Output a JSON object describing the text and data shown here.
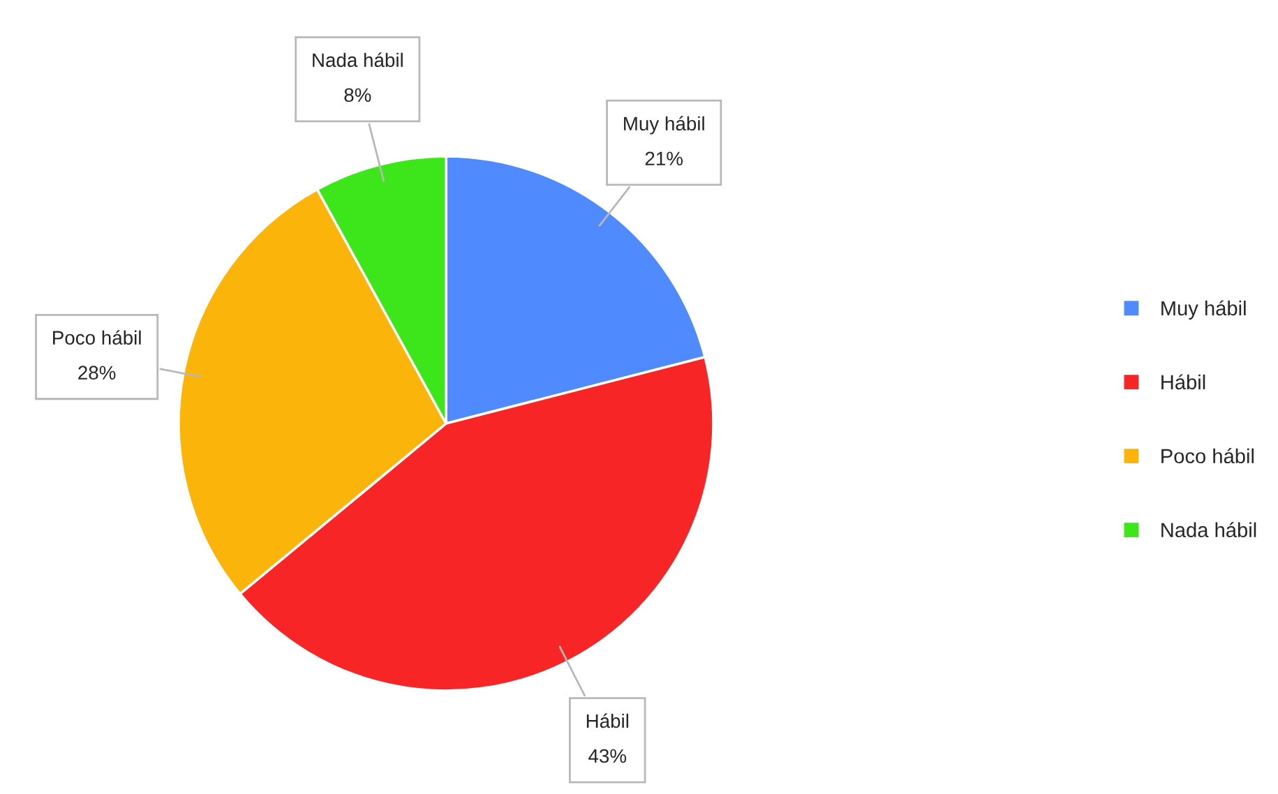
{
  "chart_data": {
    "type": "pie",
    "categories": [
      "Muy hábil",
      "Hábil",
      "Poco hábil",
      "Nada hábil"
    ],
    "values": [
      21,
      43,
      28,
      8
    ],
    "colors": [
      "#4f8bff",
      "#f72525",
      "#fbb40a",
      "#3ce61a"
    ],
    "value_labels": [
      "21%",
      "43%",
      "28%",
      "8%"
    ],
    "legend": "right"
  }
}
